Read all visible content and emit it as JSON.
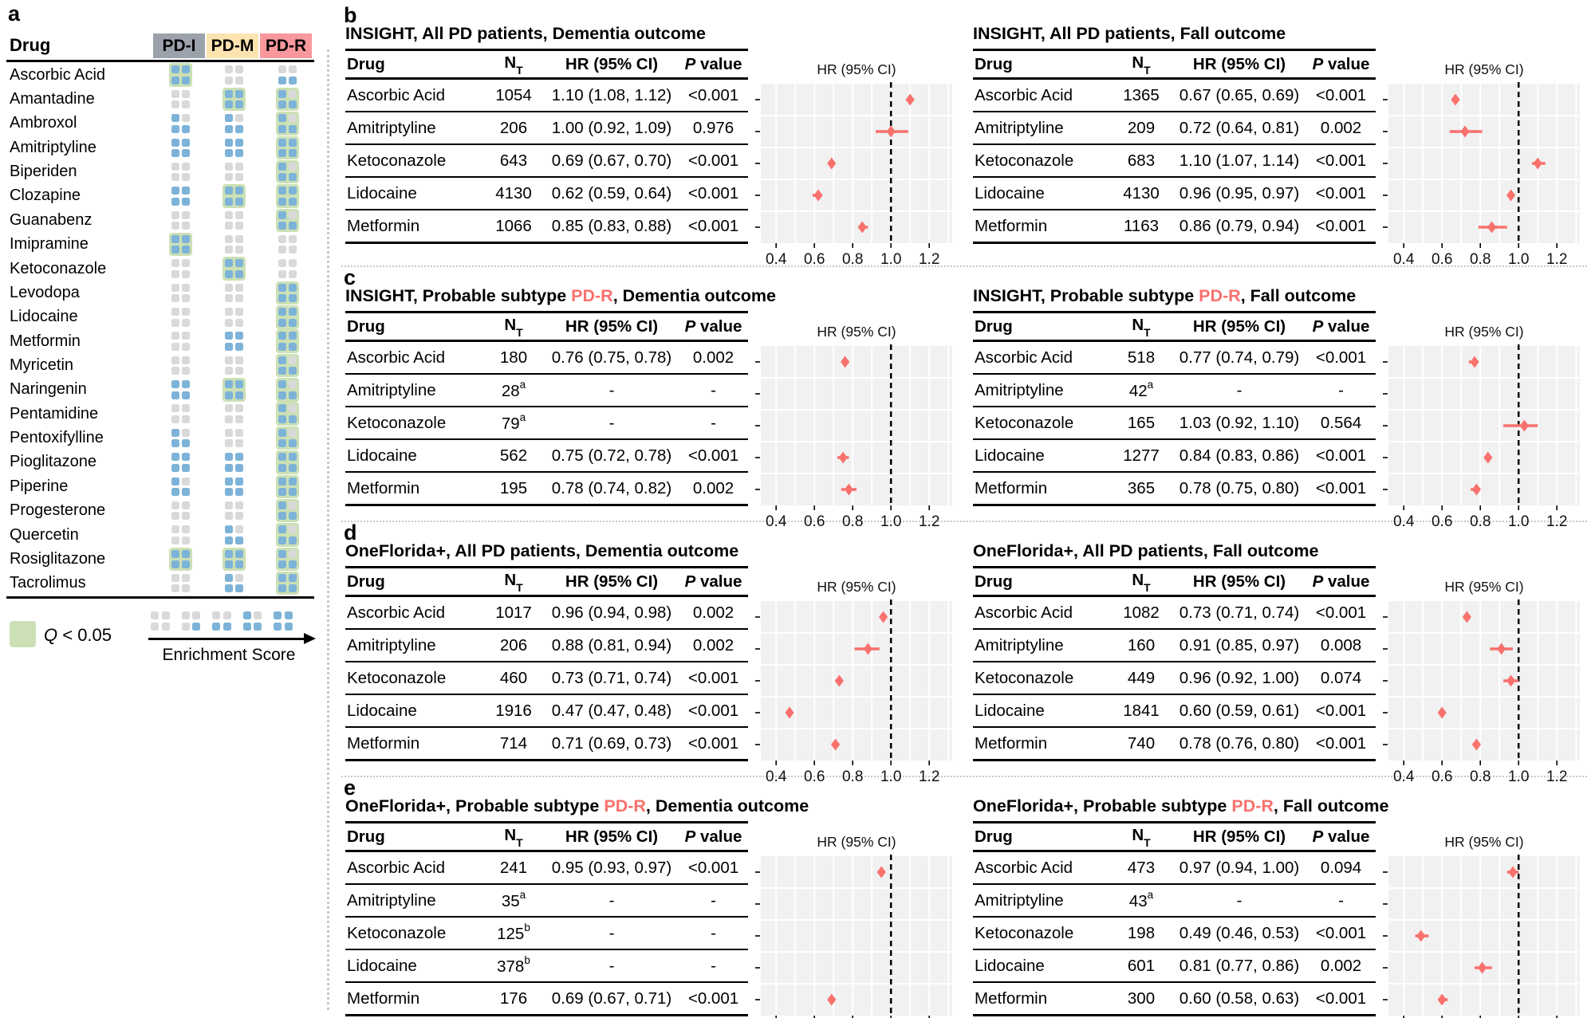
{
  "colors": {
    "blue": "#7db3d8",
    "gray": "#d9d9d9",
    "green": "#cce0b5",
    "pd_i": "#9ca2ab",
    "pd_m": "#fce3b0",
    "pd_r": "#f9989c",
    "salmon": "#f8716d",
    "plot_bg": "#f1f1f1",
    "grid": "#ffffff"
  },
  "panel_a": {
    "label": "a",
    "header_drug": "Drug",
    "columns": [
      {
        "label": "PD-I",
        "color": "#9ca2ab"
      },
      {
        "label": "PD-M",
        "color": "#fce3b0"
      },
      {
        "label": "PD-R",
        "color": "#f9989c"
      }
    ],
    "legend": {
      "q_prefix": "Q",
      "q_rest": " < 0.05",
      "axis_label": "Enrichment Score",
      "scale_scores": [
        0,
        1,
        2,
        3,
        4
      ],
      "score_fill": {
        "0": [],
        "1": [
          3
        ],
        "2": [
          2,
          3
        ],
        "3": [
          0,
          2,
          3
        ],
        "4": [
          0,
          1,
          2,
          3
        ]
      }
    },
    "rows": [
      {
        "drug": "Ascorbic Acid",
        "scores": [
          4,
          0,
          2
        ],
        "sig": [
          true,
          false,
          false
        ]
      },
      {
        "drug": "Amantadine",
        "scores": [
          0,
          4,
          3
        ],
        "sig": [
          false,
          true,
          true
        ]
      },
      {
        "drug": "Ambroxol",
        "scores": [
          3,
          3,
          3
        ],
        "sig": [
          false,
          false,
          true
        ]
      },
      {
        "drug": "Amitriptyline",
        "scores": [
          4,
          4,
          4
        ],
        "sig": [
          false,
          false,
          true
        ]
      },
      {
        "drug": "Biperiden",
        "scores": [
          0,
          0,
          3
        ],
        "sig": [
          false,
          false,
          true
        ]
      },
      {
        "drug": "Clozapine",
        "scores": [
          4,
          4,
          4
        ],
        "sig": [
          false,
          true,
          true
        ]
      },
      {
        "drug": "Guanabenz",
        "scores": [
          0,
          0,
          3
        ],
        "sig": [
          false,
          false,
          true
        ]
      },
      {
        "drug": "Imipramine",
        "scores": [
          4,
          0,
          0
        ],
        "sig": [
          true,
          false,
          false
        ]
      },
      {
        "drug": "Ketoconazole",
        "scores": [
          0,
          4,
          0
        ],
        "sig": [
          false,
          true,
          false
        ]
      },
      {
        "drug": "Levodopa",
        "scores": [
          0,
          0,
          4
        ],
        "sig": [
          false,
          false,
          true
        ]
      },
      {
        "drug": "Lidocaine",
        "scores": [
          0,
          0,
          4
        ],
        "sig": [
          false,
          false,
          true
        ]
      },
      {
        "drug": "Metformin",
        "scores": [
          0,
          4,
          4
        ],
        "sig": [
          false,
          false,
          true
        ]
      },
      {
        "drug": "Myricetin",
        "scores": [
          0,
          0,
          3
        ],
        "sig": [
          false,
          false,
          true
        ]
      },
      {
        "drug": "Naringenin",
        "scores": [
          4,
          4,
          3
        ],
        "sig": [
          false,
          true,
          true
        ]
      },
      {
        "drug": "Pentamidine",
        "scores": [
          0,
          0,
          3
        ],
        "sig": [
          false,
          false,
          true
        ]
      },
      {
        "drug": "Pentoxifylline",
        "scores": [
          3,
          0,
          3
        ],
        "sig": [
          false,
          false,
          true
        ]
      },
      {
        "drug": "Pioglitazone",
        "scores": [
          4,
          4,
          4
        ],
        "sig": [
          false,
          false,
          true
        ]
      },
      {
        "drug": "Piperine",
        "scores": [
          3,
          4,
          4
        ],
        "sig": [
          false,
          false,
          true
        ]
      },
      {
        "drug": "Progesterone",
        "scores": [
          0,
          0,
          3
        ],
        "sig": [
          false,
          false,
          true
        ]
      },
      {
        "drug": "Quercetin",
        "scores": [
          0,
          3,
          3
        ],
        "sig": [
          false,
          false,
          true
        ]
      },
      {
        "drug": "Rosiglitazone",
        "scores": [
          4,
          4,
          3
        ],
        "sig": [
          true,
          true,
          true
        ]
      },
      {
        "drug": "Tacrolimus",
        "scores": [
          0,
          3,
          4
        ],
        "sig": [
          false,
          false,
          true
        ]
      }
    ]
  },
  "table_header": {
    "drug": "Drug",
    "n": "N",
    "n_sub": "T",
    "hr": "HR (95% CI)",
    "p_italic": "P",
    "p_rest": " value",
    "missing": "-"
  },
  "forest": {
    "type": "forest",
    "title": "HR (95% CI)",
    "ticks": [
      0.4,
      0.6,
      0.8,
      1.0,
      1.2
    ],
    "tick_labels": [
      "0.4",
      "0.6",
      "0.8",
      "1.0",
      "1.2"
    ],
    "grid_step": 0.1,
    "xlim": [
      0.32,
      1.32
    ],
    "ref_line": 1.0,
    "point_color": "#f8716d",
    "bg": "#f1f1f1"
  },
  "panels": [
    {
      "label": "b",
      "left": {
        "title_pre": "INSIGHT, All PD patients, Dementia outcome",
        "title_red": "",
        "title_post": "",
        "rows": [
          {
            "drug": "Ascorbic Acid",
            "n": "1054",
            "n_sup": "",
            "hr_text": "1.10 (1.08, 1.12)",
            "p": "<0.001",
            "hr": 1.1,
            "lo": 1.08,
            "hi": 1.12
          },
          {
            "drug": "Amitriptyline",
            "n": "206",
            "n_sup": "",
            "hr_text": "1.00 (0.92, 1.09)",
            "p": "0.976",
            "hr": 1.0,
            "lo": 0.92,
            "hi": 1.09
          },
          {
            "drug": "Ketoconazole",
            "n": "643",
            "n_sup": "",
            "hr_text": "0.69 (0.67, 0.70)",
            "p": "<0.001",
            "hr": 0.69,
            "lo": 0.67,
            "hi": 0.7
          },
          {
            "drug": "Lidocaine",
            "n": "4130",
            "n_sup": "",
            "hr_text": "0.62 (0.59, 0.64)",
            "p": "<0.001",
            "hr": 0.62,
            "lo": 0.59,
            "hi": 0.64
          },
          {
            "drug": "Metformin",
            "n": "1066",
            "n_sup": "",
            "hr_text": "0.85 (0.83, 0.88)",
            "p": "<0.001",
            "hr": 0.85,
            "lo": 0.83,
            "hi": 0.88
          }
        ]
      },
      "right": {
        "title_pre": "INSIGHT, All PD patients, Fall outcome",
        "title_red": "",
        "title_post": "",
        "rows": [
          {
            "drug": "Ascorbic Acid",
            "n": "1365",
            "n_sup": "",
            "hr_text": "0.67 (0.65, 0.69)",
            "p": "<0.001",
            "hr": 0.67,
            "lo": 0.65,
            "hi": 0.69
          },
          {
            "drug": "Amitriptyline",
            "n": "209",
            "n_sup": "",
            "hr_text": "0.72 (0.64, 0.81)",
            "p": "0.002",
            "hr": 0.72,
            "lo": 0.64,
            "hi": 0.81
          },
          {
            "drug": "Ketoconazole",
            "n": "683",
            "n_sup": "",
            "hr_text": "1.10 (1.07, 1.14)",
            "p": "<0.001",
            "hr": 1.1,
            "lo": 1.07,
            "hi": 1.14
          },
          {
            "drug": "Lidocaine",
            "n": "4130",
            "n_sup": "",
            "hr_text": "0.96 (0.95, 0.97)",
            "p": "<0.001",
            "hr": 0.96,
            "lo": 0.95,
            "hi": 0.97
          },
          {
            "drug": "Metformin",
            "n": "1163",
            "n_sup": "",
            "hr_text": "0.86 (0.79, 0.94)",
            "p": "<0.001",
            "hr": 0.86,
            "lo": 0.79,
            "hi": 0.94
          }
        ]
      }
    },
    {
      "label": "c",
      "left": {
        "title_pre": "INSIGHT, Probable subtype ",
        "title_red": "PD-R",
        "title_post": ", Dementia outcome",
        "rows": [
          {
            "drug": "Ascorbic Acid",
            "n": "180",
            "n_sup": "",
            "hr_text": "0.76 (0.75, 0.78)",
            "p": "0.002",
            "hr": 0.76,
            "lo": 0.75,
            "hi": 0.78
          },
          {
            "drug": "Amitriptyline",
            "n": "28",
            "n_sup": "a",
            "hr_text": null,
            "p": null,
            "hr": null,
            "lo": null,
            "hi": null
          },
          {
            "drug": "Ketoconazole",
            "n": "79",
            "n_sup": "a",
            "hr_text": null,
            "p": null,
            "hr": null,
            "lo": null,
            "hi": null
          },
          {
            "drug": "Lidocaine",
            "n": "562",
            "n_sup": "",
            "hr_text": "0.75 (0.72, 0.78)",
            "p": "<0.001",
            "hr": 0.75,
            "lo": 0.72,
            "hi": 0.78
          },
          {
            "drug": "Metformin",
            "n": "195",
            "n_sup": "",
            "hr_text": "0.78 (0.74, 0.82)",
            "p": "0.002",
            "hr": 0.78,
            "lo": 0.74,
            "hi": 0.82
          }
        ]
      },
      "right": {
        "title_pre": "INSIGHT, Probable subtype ",
        "title_red": "PD-R",
        "title_post": ", Fall outcome",
        "rows": [
          {
            "drug": "Ascorbic Acid",
            "n": "518",
            "n_sup": "",
            "hr_text": "0.77 (0.74, 0.79)",
            "p": "<0.001",
            "hr": 0.77,
            "lo": 0.74,
            "hi": 0.79
          },
          {
            "drug": "Amitriptyline",
            "n": "42",
            "n_sup": "a",
            "hr_text": null,
            "p": null,
            "hr": null,
            "lo": null,
            "hi": null
          },
          {
            "drug": "Ketoconazole",
            "n": "165",
            "n_sup": "",
            "hr_text": "1.03 (0.92, 1.10)",
            "p": "0.564",
            "hr": 1.03,
            "lo": 0.92,
            "hi": 1.1
          },
          {
            "drug": "Lidocaine",
            "n": "1277",
            "n_sup": "",
            "hr_text": "0.84 (0.83, 0.86)",
            "p": "<0.001",
            "hr": 0.84,
            "lo": 0.83,
            "hi": 0.86
          },
          {
            "drug": "Metformin",
            "n": "365",
            "n_sup": "",
            "hr_text": "0.78 (0.75, 0.80)",
            "p": "<0.001",
            "hr": 0.78,
            "lo": 0.75,
            "hi": 0.8
          }
        ]
      }
    },
    {
      "label": "d",
      "left": {
        "title_pre": "OneFlorida+, All PD patients, Dementia outcome",
        "title_red": "",
        "title_post": "",
        "rows": [
          {
            "drug": "Ascorbic Acid",
            "n": "1017",
            "n_sup": "",
            "hr_text": "0.96 (0.94, 0.98)",
            "p": "0.002",
            "hr": 0.96,
            "lo": 0.94,
            "hi": 0.98
          },
          {
            "drug": "Amitriptyline",
            "n": "206",
            "n_sup": "",
            "hr_text": "0.88 (0.81, 0.94)",
            "p": "0.002",
            "hr": 0.88,
            "lo": 0.81,
            "hi": 0.94
          },
          {
            "drug": "Ketoconazole",
            "n": "460",
            "n_sup": "",
            "hr_text": "0.73 (0.71, 0.74)",
            "p": "<0.001",
            "hr": 0.73,
            "lo": 0.71,
            "hi": 0.74
          },
          {
            "drug": "Lidocaine",
            "n": "1916",
            "n_sup": "",
            "hr_text": "0.47 (0.47, 0.48)",
            "p": "<0.001",
            "hr": 0.47,
            "lo": 0.47,
            "hi": 0.48
          },
          {
            "drug": "Metformin",
            "n": "714",
            "n_sup": "",
            "hr_text": "0.71 (0.69, 0.73)",
            "p": "<0.001",
            "hr": 0.71,
            "lo": 0.69,
            "hi": 0.73
          }
        ]
      },
      "right": {
        "title_pre": "OneFlorida+, All PD patients, Fall outcome",
        "title_red": "",
        "title_post": "",
        "rows": [
          {
            "drug": "Ascorbic Acid",
            "n": "1082",
            "n_sup": "",
            "hr_text": "0.73 (0.71, 0.74)",
            "p": "<0.001",
            "hr": 0.73,
            "lo": 0.71,
            "hi": 0.74
          },
          {
            "drug": "Amitriptyline",
            "n": "160",
            "n_sup": "",
            "hr_text": "0.91 (0.85, 0.97)",
            "p": "0.008",
            "hr": 0.91,
            "lo": 0.85,
            "hi": 0.97
          },
          {
            "drug": "Ketoconazole",
            "n": "449",
            "n_sup": "",
            "hr_text": "0.96 (0.92, 1.00)",
            "p": "0.074",
            "hr": 0.96,
            "lo": 0.92,
            "hi": 1.0
          },
          {
            "drug": "Lidocaine",
            "n": "1841",
            "n_sup": "",
            "hr_text": "0.60 (0.59, 0.61)",
            "p": "<0.001",
            "hr": 0.6,
            "lo": 0.59,
            "hi": 0.61
          },
          {
            "drug": "Metformin",
            "n": "740",
            "n_sup": "",
            "hr_text": "0.78 (0.76, 0.80)",
            "p": "<0.001",
            "hr": 0.78,
            "lo": 0.76,
            "hi": 0.8
          }
        ]
      }
    },
    {
      "label": "e",
      "left": {
        "title_pre": "OneFlorida+, Probable subtype ",
        "title_red": "PD-R",
        "title_post": ", Dementia outcome",
        "rows": [
          {
            "drug": "Ascorbic Acid",
            "n": "241",
            "n_sup": "",
            "hr_text": "0.95 (0.93, 0.97)",
            "p": "<0.001",
            "hr": 0.95,
            "lo": 0.93,
            "hi": 0.97
          },
          {
            "drug": "Amitriptyline",
            "n": "35",
            "n_sup": "a",
            "hr_text": null,
            "p": null,
            "hr": null,
            "lo": null,
            "hi": null
          },
          {
            "drug": "Ketoconazole",
            "n": "125",
            "n_sup": "b",
            "hr_text": null,
            "p": null,
            "hr": null,
            "lo": null,
            "hi": null
          },
          {
            "drug": "Lidocaine",
            "n": "378",
            "n_sup": "b",
            "hr_text": null,
            "p": null,
            "hr": null,
            "lo": null,
            "hi": null
          },
          {
            "drug": "Metformin",
            "n": "176",
            "n_sup": "",
            "hr_text": "0.69 (0.67, 0.71)",
            "p": "<0.001",
            "hr": 0.69,
            "lo": 0.67,
            "hi": 0.71
          }
        ]
      },
      "right": {
        "title_pre": "OneFlorida+, Probable subtype ",
        "title_red": "PD-R",
        "title_post": ", Fall outcome",
        "rows": [
          {
            "drug": "Ascorbic Acid",
            "n": "473",
            "n_sup": "",
            "hr_text": "0.97 (0.94, 1.00)",
            "p": "0.094",
            "hr": 0.97,
            "lo": 0.94,
            "hi": 1.0
          },
          {
            "drug": "Amitriptyline",
            "n": "43",
            "n_sup": "a",
            "hr_text": null,
            "p": null,
            "hr": null,
            "lo": null,
            "hi": null
          },
          {
            "drug": "Ketoconazole",
            "n": "198",
            "n_sup": "",
            "hr_text": "0.49 (0.46, 0.53)",
            "p": "<0.001",
            "hr": 0.49,
            "lo": 0.46,
            "hi": 0.53
          },
          {
            "drug": "Lidocaine",
            "n": "601",
            "n_sup": "",
            "hr_text": "0.81 (0.77, 0.86)",
            "p": "0.002",
            "hr": 0.81,
            "lo": 0.77,
            "hi": 0.86
          },
          {
            "drug": "Metformin",
            "n": "300",
            "n_sup": "",
            "hr_text": "0.60 (0.58, 0.63)",
            "p": "<0.001",
            "hr": 0.6,
            "lo": 0.58,
            "hi": 0.63
          }
        ]
      }
    }
  ]
}
